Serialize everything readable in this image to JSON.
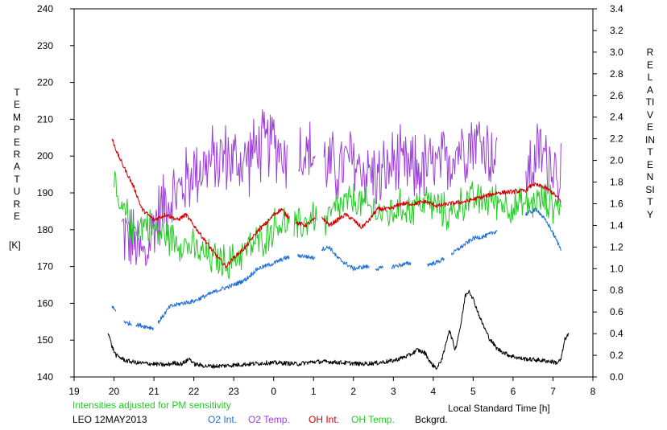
{
  "chart_data": {
    "type": "line",
    "title": "",
    "y_left_label": "TEMPERATURE",
    "y_left_unit": "[K]",
    "y_right_label": "RELATIVE INTENSITY",
    "xlabel": "Local Standard Time [h]",
    "annotation": "Intensities adjusted for PM sensitivity",
    "station_label": "LEO 12MAY2013",
    "x_ticks": [
      "19",
      "20",
      "21",
      "22",
      "23",
      "0",
      "1",
      "2",
      "3",
      "4",
      "5",
      "6",
      "7",
      "8"
    ],
    "y_left_ticks": [
      "140",
      "150",
      "160",
      "170",
      "180",
      "190",
      "200",
      "210",
      "220",
      "230",
      "240"
    ],
    "y_right_ticks": [
      "0.0",
      "0.2",
      "0.4",
      "0.6",
      "0.8",
      "1.0",
      "1.2",
      "1.4",
      "1.6",
      "1.8",
      "2.0",
      "2.2",
      "2.4",
      "2.6",
      "2.8",
      "3.0",
      "3.2",
      "3.4"
    ],
    "x_range": [
      19,
      32
    ],
    "y_left_range": [
      140,
      240
    ],
    "y_right_range": [
      0,
      3.4
    ],
    "legend": [
      {
        "label": "O2 Int.",
        "color": "#1f6fd6"
      },
      {
        "label": "O2 Temp.",
        "color": "#9b3fd8"
      },
      {
        "label": "OH Int.",
        "color": "#d40000"
      },
      {
        "label": "OH Temp.",
        "color": "#22cc22"
      },
      {
        "label": "Bckgrd.",
        "color": "#000000"
      }
    ],
    "series": [
      {
        "name": "O2 Temp.",
        "color": "#9b3fd8",
        "axis": "left",
        "kind": "noisy",
        "points": [
          [
            20.2,
            180
          ],
          [
            20.5,
            176
          ],
          [
            20.8,
            172
          ],
          [
            21.0,
            182
          ],
          [
            21.3,
            188
          ],
          [
            21.6,
            190
          ],
          [
            22.0,
            196
          ],
          [
            22.4,
            198
          ],
          [
            22.8,
            200
          ],
          [
            23.2,
            198
          ],
          [
            23.6,
            202
          ],
          [
            24.0,
            204
          ],
          [
            24.3,
            200
          ],
          [
            24.6,
            202
          ],
          [
            25.0,
            200
          ],
          [
            25.3,
            198
          ],
          [
            25.6,
            196
          ],
          [
            25.9,
            199
          ],
          [
            26.3,
            196
          ],
          [
            26.7,
            194
          ],
          [
            27.0,
            198
          ],
          [
            27.4,
            196
          ],
          [
            27.9,
            197
          ],
          [
            28.2,
            197
          ],
          [
            28.6,
            202
          ],
          [
            29.0,
            205
          ],
          [
            29.4,
            202
          ],
          [
            29.6,
            198
          ],
          [
            30.3,
            195
          ],
          [
            30.7,
            201
          ],
          [
            31.0,
            198
          ],
          [
            31.2,
            196
          ]
        ],
        "noise": 12,
        "gaps": [
          [
            24.35,
            24.6
          ],
          [
            25.05,
            25.25
          ],
          [
            29.6,
            30.3
          ]
        ]
      },
      {
        "name": "OH Temp.",
        "color": "#22cc22",
        "axis": "left",
        "kind": "noisy",
        "points": [
          [
            20.0,
            192
          ],
          [
            20.1,
            186
          ],
          [
            20.3,
            184
          ],
          [
            20.5,
            180
          ],
          [
            20.8,
            182
          ],
          [
            21.0,
            180
          ],
          [
            21.4,
            178
          ],
          [
            21.8,
            176
          ],
          [
            22.1,
            174
          ],
          [
            22.5,
            172
          ],
          [
            22.9,
            171
          ],
          [
            23.2,
            174
          ],
          [
            23.5,
            176
          ],
          [
            23.8,
            178
          ],
          [
            24.0,
            181
          ],
          [
            24.3,
            182
          ],
          [
            24.5,
            180
          ],
          [
            24.8,
            182
          ],
          [
            25.0,
            184
          ],
          [
            25.3,
            182
          ],
          [
            25.6,
            186
          ],
          [
            26.0,
            188
          ],
          [
            26.4,
            186
          ],
          [
            26.8,
            184
          ],
          [
            27.2,
            186
          ],
          [
            27.5,
            186
          ],
          [
            27.8,
            188
          ],
          [
            28.1,
            186
          ],
          [
            28.4,
            184
          ],
          [
            28.8,
            188
          ],
          [
            29.2,
            188
          ],
          [
            29.6,
            188
          ],
          [
            30.0,
            186
          ],
          [
            30.4,
            187
          ],
          [
            30.8,
            188
          ],
          [
            31.2,
            186
          ]
        ],
        "noise": 6,
        "gaps": [
          [
            24.4,
            24.5
          ],
          [
            25.1,
            25.25
          ]
        ]
      },
      {
        "name": "OH Int.",
        "color": "#d40000",
        "axis": "right",
        "kind": "smooth",
        "points": [
          [
            19.95,
            2.2
          ],
          [
            20.1,
            2.05
          ],
          [
            20.3,
            1.9
          ],
          [
            20.5,
            1.75
          ],
          [
            20.7,
            1.55
          ],
          [
            20.85,
            1.5
          ],
          [
            21.0,
            1.45
          ],
          [
            21.3,
            1.5
          ],
          [
            21.6,
            1.45
          ],
          [
            21.8,
            1.5
          ],
          [
            22.0,
            1.4
          ],
          [
            22.2,
            1.3
          ],
          [
            22.5,
            1.15
          ],
          [
            22.8,
            1.02
          ],
          [
            23.0,
            1.1
          ],
          [
            23.3,
            1.2
          ],
          [
            23.6,
            1.35
          ],
          [
            23.9,
            1.45
          ],
          [
            24.0,
            1.5
          ],
          [
            24.2,
            1.55
          ],
          [
            24.3,
            1.5
          ],
          [
            24.6,
            1.42
          ],
          [
            24.8,
            1.4
          ],
          [
            25.0,
            1.45
          ],
          [
            25.2,
            1.48
          ],
          [
            25.4,
            1.4
          ],
          [
            25.6,
            1.45
          ],
          [
            25.8,
            1.5
          ],
          [
            26.0,
            1.45
          ],
          [
            26.2,
            1.38
          ],
          [
            26.4,
            1.45
          ],
          [
            26.6,
            1.55
          ],
          [
            26.9,
            1.55
          ],
          [
            27.2,
            1.6
          ],
          [
            27.5,
            1.6
          ],
          [
            27.8,
            1.62
          ],
          [
            28.1,
            1.58
          ],
          [
            28.4,
            1.6
          ],
          [
            28.8,
            1.62
          ],
          [
            29.1,
            1.65
          ],
          [
            29.4,
            1.68
          ],
          [
            29.6,
            1.7
          ],
          [
            30.3,
            1.72
          ],
          [
            30.5,
            1.78
          ],
          [
            30.8,
            1.75
          ],
          [
            31.0,
            1.7
          ],
          [
            31.2,
            1.62
          ]
        ],
        "gaps": [
          [
            24.4,
            24.55
          ],
          [
            25.05,
            25.2
          ]
        ]
      },
      {
        "name": "O2 Int.",
        "color": "#1f6fd6",
        "axis": "right",
        "kind": "smooth",
        "points": [
          [
            19.95,
            0.65
          ],
          [
            20.3,
            0.5
          ],
          [
            20.6,
            0.48
          ],
          [
            21.0,
            0.45
          ],
          [
            21.2,
            0.55
          ],
          [
            21.4,
            0.65
          ],
          [
            21.7,
            0.68
          ],
          [
            22.0,
            0.7
          ],
          [
            22.3,
            0.75
          ],
          [
            22.6,
            0.8
          ],
          [
            23.0,
            0.85
          ],
          [
            23.3,
            0.9
          ],
          [
            23.6,
            1.0
          ],
          [
            24.0,
            1.05
          ],
          [
            24.3,
            1.1
          ],
          [
            24.7,
            1.12
          ],
          [
            25.0,
            1.1
          ],
          [
            25.2,
            1.18
          ],
          [
            25.4,
            1.2
          ],
          [
            25.6,
            1.1
          ],
          [
            25.8,
            1.05
          ],
          [
            26.0,
            1.0
          ],
          [
            26.3,
            1.02
          ],
          [
            26.6,
            1.0
          ],
          [
            27.0,
            1.02
          ],
          [
            27.4,
            1.05
          ],
          [
            27.9,
            1.04
          ],
          [
            28.1,
            1.06
          ],
          [
            28.4,
            1.12
          ],
          [
            28.7,
            1.2
          ],
          [
            29.0,
            1.28
          ],
          [
            29.3,
            1.3
          ],
          [
            29.6,
            1.35
          ],
          [
            30.3,
            1.5
          ],
          [
            30.6,
            1.55
          ],
          [
            30.9,
            1.4
          ],
          [
            31.2,
            1.18
          ]
        ],
        "gaps": [
          [
            20.05,
            20.25
          ],
          [
            20.45,
            20.55
          ],
          [
            21.0,
            21.1
          ],
          [
            24.4,
            24.6
          ],
          [
            25.05,
            25.2
          ],
          [
            26.4,
            26.55
          ],
          [
            26.75,
            26.95
          ],
          [
            27.45,
            27.85
          ],
          [
            28.3,
            28.45
          ],
          [
            29.6,
            30.3
          ]
        ]
      },
      {
        "name": "Bckgrd.",
        "color": "#000000",
        "axis": "right",
        "kind": "smooth",
        "points": [
          [
            19.85,
            0.42
          ],
          [
            19.95,
            0.28
          ],
          [
            20.05,
            0.2
          ],
          [
            20.3,
            0.15
          ],
          [
            20.6,
            0.13
          ],
          [
            21.0,
            0.12
          ],
          [
            21.3,
            0.11
          ],
          [
            21.5,
            0.13
          ],
          [
            21.7,
            0.12
          ],
          [
            21.9,
            0.17
          ],
          [
            22.0,
            0.12
          ],
          [
            22.3,
            0.1
          ],
          [
            22.6,
            0.1
          ],
          [
            23.0,
            0.11
          ],
          [
            23.4,
            0.12
          ],
          [
            23.8,
            0.13
          ],
          [
            24.2,
            0.13
          ],
          [
            24.6,
            0.12
          ],
          [
            25.0,
            0.14
          ],
          [
            25.4,
            0.14
          ],
          [
            25.8,
            0.13
          ],
          [
            26.2,
            0.12
          ],
          [
            26.6,
            0.13
          ],
          [
            27.0,
            0.15
          ],
          [
            27.4,
            0.2
          ],
          [
            27.6,
            0.25
          ],
          [
            27.8,
            0.22
          ],
          [
            27.95,
            0.12
          ],
          [
            28.1,
            0.08
          ],
          [
            28.25,
            0.2
          ],
          [
            28.4,
            0.44
          ],
          [
            28.55,
            0.25
          ],
          [
            28.7,
            0.5
          ],
          [
            28.8,
            0.75
          ],
          [
            28.9,
            0.8
          ],
          [
            29.0,
            0.72
          ],
          [
            29.2,
            0.52
          ],
          [
            29.4,
            0.36
          ],
          [
            29.6,
            0.26
          ],
          [
            29.9,
            0.2
          ],
          [
            30.2,
            0.17
          ],
          [
            30.5,
            0.16
          ],
          [
            30.8,
            0.15
          ],
          [
            31.0,
            0.14
          ],
          [
            31.1,
            0.13
          ],
          [
            31.2,
            0.16
          ],
          [
            31.3,
            0.35
          ],
          [
            31.4,
            0.4
          ]
        ]
      }
    ]
  }
}
